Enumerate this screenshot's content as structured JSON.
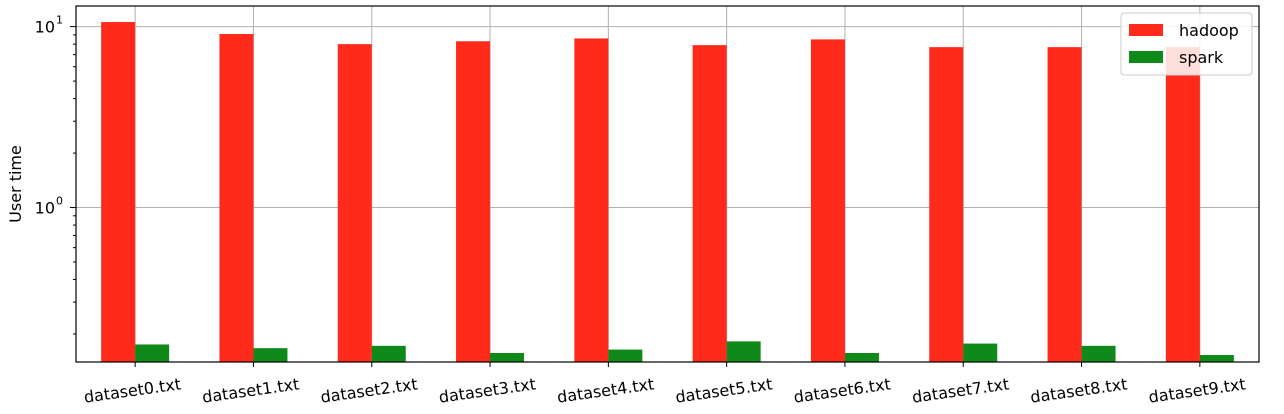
{
  "chart_data": {
    "type": "bar",
    "yscale": "log",
    "categories": [
      "dataset0.txt",
      "dataset1.txt",
      "dataset2.txt",
      "dataset3.txt",
      "dataset4.txt",
      "dataset5.txt",
      "dataset6.txt",
      "dataset7.txt",
      "dataset8.txt",
      "dataset9.txt"
    ],
    "series": [
      {
        "name": "hadoop",
        "color": "#ff2a1a",
        "values": [
          10.6,
          9.1,
          8.0,
          8.3,
          8.6,
          7.9,
          8.5,
          7.7,
          7.7,
          7.7
        ]
      },
      {
        "name": "spark",
        "color": "#0f8a1a",
        "values": [
          0.175,
          0.167,
          0.172,
          0.157,
          0.164,
          0.182,
          0.157,
          0.177,
          0.172,
          0.153
        ]
      }
    ],
    "title": "",
    "xlabel": "",
    "ylabel": "User time",
    "ylim": [
      0.14,
      13
    ],
    "yticks": [
      {
        "value": 1,
        "base": "10",
        "exp": "0"
      },
      {
        "value": 10,
        "base": "10",
        "exp": "1"
      }
    ],
    "grid": true,
    "legend_position": "top-right"
  }
}
